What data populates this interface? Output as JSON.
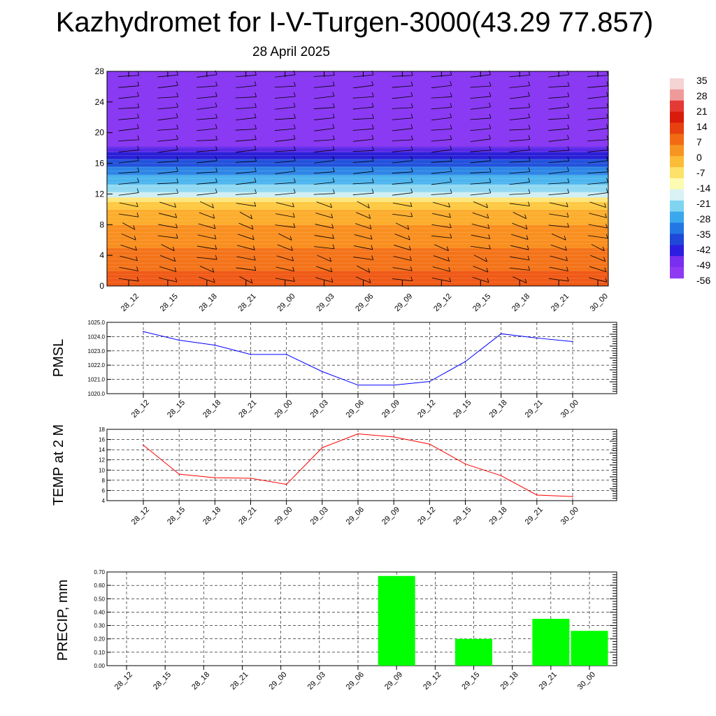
{
  "title": "Kazhydromet for I-V-Turgen-3000(43.29 77.857)",
  "subtitle": "28 April 2025",
  "chart_data": [
    {
      "type": "heatmap",
      "name": "vertical-temperature-wind-section",
      "x_ticks": [
        "28_12",
        "28_15",
        "28_18",
        "28_21",
        "29_00",
        "29_03",
        "29_06",
        "29_09",
        "29_12",
        "29_15",
        "29_18",
        "29_21",
        "30_00"
      ],
      "y_ticks": [
        0,
        4,
        8,
        12,
        16,
        20,
        24,
        28
      ],
      "ylim": [
        0,
        28
      ],
      "colorbar": {
        "labels": [
          "35",
          "28",
          "21",
          "14",
          "7",
          "0",
          "-7",
          "-14",
          "-21",
          "-28",
          "-35",
          "-42",
          "-49",
          "-56"
        ],
        "colors": [
          "#f5d4d4",
          "#ef9a9a",
          "#e53935",
          "#d81b0b",
          "#e8400e",
          "#f26b14",
          "#f79522",
          "#fbbd38",
          "#fde26a",
          "#fdfbb2",
          "#d8f2f5",
          "#7fd4f0",
          "#3aa8ec",
          "#2277e4",
          "#1f48d8",
          "#2c1ee0",
          "#7a2ef0",
          "#8f3af2"
        ]
      },
      "bands": [
        {
          "from": 0,
          "to": 2,
          "color": "#f05a17"
        },
        {
          "from": 2,
          "to": 5,
          "color": "#f47319"
        },
        {
          "from": 5,
          "to": 8,
          "color": "#f98f1f"
        },
        {
          "from": 8,
          "to": 10,
          "color": "#fcad2d"
        },
        {
          "from": 10,
          "to": 11,
          "color": "#fec942"
        },
        {
          "from": 11,
          "to": 11.6,
          "color": "#fde77c"
        },
        {
          "from": 11.6,
          "to": 12.3,
          "color": "#cfeff4"
        },
        {
          "from": 12.3,
          "to": 13.3,
          "color": "#8fd8f2"
        },
        {
          "from": 13.3,
          "to": 14.5,
          "color": "#4cb4ee"
        },
        {
          "from": 14.5,
          "to": 15.6,
          "color": "#2d86e6"
        },
        {
          "from": 15.6,
          "to": 16.6,
          "color": "#2352dc"
        },
        {
          "from": 16.6,
          "to": 17.5,
          "color": "#2a1fd6"
        },
        {
          "from": 17.5,
          "to": 18.2,
          "color": "#5a28e8"
        },
        {
          "from": 18.2,
          "to": 28,
          "color": "#8a3af2"
        }
      ]
    },
    {
      "type": "line",
      "name": "pmsl",
      "ylabel": "PMSL",
      "categories": [
        "28_12",
        "28_15",
        "28_18",
        "28_21",
        "29_00",
        "29_03",
        "29_06",
        "29_09",
        "29_12",
        "29_15",
        "29_18",
        "29_21",
        "30_00"
      ],
      "values": [
        1024.35,
        1023.75,
        1023.4,
        1022.75,
        1022.75,
        1021.55,
        1020.6,
        1020.6,
        1020.85,
        1022.25,
        1024.2,
        1023.9,
        1023.65
      ],
      "ylim": [
        1020.0,
        1025.0
      ],
      "y_ticks": [
        "1020.0",
        "1021.0",
        "1022.0",
        "1023.0",
        "1024.0",
        "1025.0"
      ],
      "color": "#0000ff"
    },
    {
      "type": "line",
      "name": "temp-2m",
      "ylabel": "TEMP at 2 M",
      "categories": [
        "28_12",
        "28_15",
        "28_18",
        "28_21",
        "29_00",
        "29_03",
        "29_06",
        "29_09",
        "29_12",
        "29_15",
        "29_18",
        "29_21",
        "30_00"
      ],
      "values": [
        14.9,
        9.2,
        8.5,
        8.4,
        7.2,
        14.4,
        17.1,
        16.5,
        15.1,
        11.2,
        8.9,
        5.1,
        4.8
      ],
      "ylim": [
        4,
        18
      ],
      "y_ticks": [
        "4",
        "6",
        "8",
        "10",
        "12",
        "14",
        "16",
        "18"
      ],
      "color": "#ff0000"
    },
    {
      "type": "bar",
      "name": "precip",
      "ylabel": "PRECIP, mm",
      "categories": [
        "28_12",
        "28_15",
        "28_18",
        "28_21",
        "29_00",
        "29_03",
        "29_06",
        "29_09",
        "29_12",
        "29_15",
        "29_18",
        "29_21",
        "30_00"
      ],
      "values": [
        0,
        0,
        0,
        0,
        0,
        0,
        0,
        0.67,
        0,
        0.2,
        0,
        0.35,
        0.26
      ],
      "ylim": [
        0,
        0.7
      ],
      "y_ticks": [
        "0.00",
        "0.10",
        "0.20",
        "0.30",
        "0.40",
        "0.50",
        "0.60",
        "0.70"
      ],
      "color": "#00ff00"
    }
  ]
}
